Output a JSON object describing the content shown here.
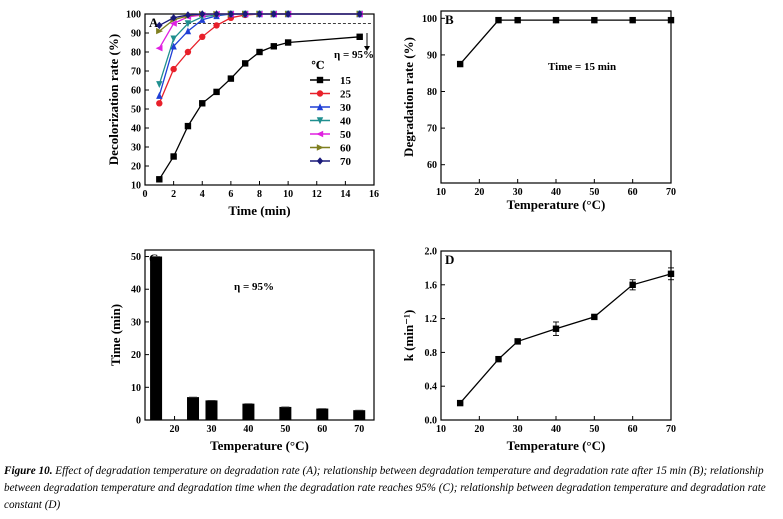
{
  "caption": {
    "label": "Figure 10.",
    "text": "Effect of degradation temperature on degradation rate (A); relationship between degradation temperature and degradation rate after 15 min (B); relationship between degradation temperature and degradation time when the degradation rate reaches 95% (C); relationship between degradation temperature and degradation rate constant (D)"
  },
  "chart_data": [
    {
      "panel": "A",
      "type": "line",
      "xlabel": "Time (min)",
      "ylabel": "Decolorization rate (%)",
      "xlim": [
        0,
        16
      ],
      "ylim": [
        10,
        100
      ],
      "xticks": [
        0,
        2,
        4,
        6,
        8,
        10,
        12,
        14,
        16
      ],
      "yticks": [
        10,
        20,
        30,
        40,
        50,
        60,
        70,
        80,
        90,
        100
      ],
      "legend_title": "℃",
      "legend_position": "right-middle",
      "annotation": "η = 95%",
      "reference_line": 95,
      "series": [
        {
          "name": "15",
          "color": "#000000",
          "marker": "square",
          "x": [
            1,
            2,
            3,
            4,
            5,
            6,
            7,
            8,
            9,
            10,
            15
          ],
          "y": [
            13,
            25,
            41,
            53,
            59,
            66,
            74,
            80,
            83,
            85,
            88
          ]
        },
        {
          "name": "25",
          "color": "#e8202a",
          "marker": "circle",
          "x": [
            1,
            2,
            3,
            4,
            5,
            6,
            7,
            8,
            9,
            10,
            15
          ],
          "y": [
            53,
            71,
            80,
            88,
            94,
            98,
            99.5,
            100,
            100,
            100,
            100
          ]
        },
        {
          "name": "30",
          "color": "#1f3fd6",
          "marker": "triangle-up",
          "x": [
            1,
            2,
            3,
            4,
            5,
            6,
            7,
            8,
            9,
            10,
            15
          ],
          "y": [
            57,
            83,
            91,
            97,
            99,
            100,
            100,
            100,
            100,
            100,
            100
          ]
        },
        {
          "name": "40",
          "color": "#1f8f8f",
          "marker": "triangle-down",
          "x": [
            1,
            2,
            3,
            4,
            5,
            6,
            7,
            8,
            9,
            10,
            15
          ],
          "y": [
            63,
            87,
            95,
            98.5,
            99.5,
            100,
            100,
            100,
            100,
            100,
            100
          ]
        },
        {
          "name": "50",
          "color": "#e020e0",
          "marker": "triangle-left",
          "x": [
            1,
            2,
            3,
            4,
            5,
            6,
            7,
            8,
            9,
            10,
            15
          ],
          "y": [
            82,
            95,
            98.5,
            99.5,
            100,
            100,
            100,
            100,
            100,
            100,
            100
          ]
        },
        {
          "name": "60",
          "color": "#7f7f1f",
          "marker": "triangle-right",
          "x": [
            1,
            2,
            3,
            4,
            5,
            6,
            7,
            8,
            9,
            10,
            15
          ],
          "y": [
            91,
            97,
            99,
            100,
            100,
            100,
            100,
            100,
            100,
            100,
            100
          ]
        },
        {
          "name": "70",
          "color": "#1a1a7a",
          "marker": "diamond",
          "x": [
            1,
            2,
            3,
            4,
            5,
            6,
            7,
            8,
            9,
            10,
            15
          ],
          "y": [
            94,
            98,
            99.5,
            100,
            100,
            100,
            100,
            100,
            100,
            100,
            100
          ]
        }
      ]
    },
    {
      "panel": "B",
      "type": "line",
      "xlabel": "Temperature (°C)",
      "ylabel": "Degradation rate (%)",
      "xlim": [
        10,
        70
      ],
      "ylim": [
        55,
        102
      ],
      "xticks": [
        10,
        20,
        30,
        40,
        50,
        60,
        70
      ],
      "yticks": [
        60,
        70,
        80,
        90,
        100
      ],
      "annotation": "Time = 15 min",
      "x": [
        15,
        25,
        30,
        40,
        50,
        60,
        70
      ],
      "y": [
        87.5,
        99.5,
        99.5,
        99.5,
        99.5,
        99.5,
        99.5
      ]
    },
    {
      "panel": "C",
      "type": "bar",
      "xlabel": "Temperature (°C)",
      "ylabel": "Time (min)",
      "xlim": [
        12,
        74
      ],
      "ylim": [
        0,
        52
      ],
      "xticks": [
        20,
        30,
        40,
        50,
        60,
        70
      ],
      "yticks": [
        0,
        10,
        20,
        30,
        40,
        50
      ],
      "annotation": "η = 95%",
      "x": [
        15,
        25,
        30,
        40,
        50,
        60,
        70
      ],
      "values": [
        50,
        7,
        6,
        5,
        4,
        3.5,
        3
      ]
    },
    {
      "panel": "D",
      "type": "line",
      "xlabel": "Temperature (°C)",
      "ylabel": "k (min⁻¹)",
      "xlim": [
        10,
        70
      ],
      "ylim": [
        0,
        2.0
      ],
      "xticks": [
        10,
        20,
        30,
        40,
        50,
        60,
        70
      ],
      "yticks": [
        0.0,
        0.4,
        0.8,
        1.2,
        1.6,
        2.0
      ],
      "x": [
        15,
        25,
        30,
        40,
        50,
        60,
        70
      ],
      "y": [
        0.2,
        0.72,
        0.93,
        1.08,
        1.22,
        1.6,
        1.73
      ],
      "error": [
        0.01,
        0.02,
        0.03,
        0.08,
        0.02,
        0.06,
        0.07
      ]
    }
  ]
}
